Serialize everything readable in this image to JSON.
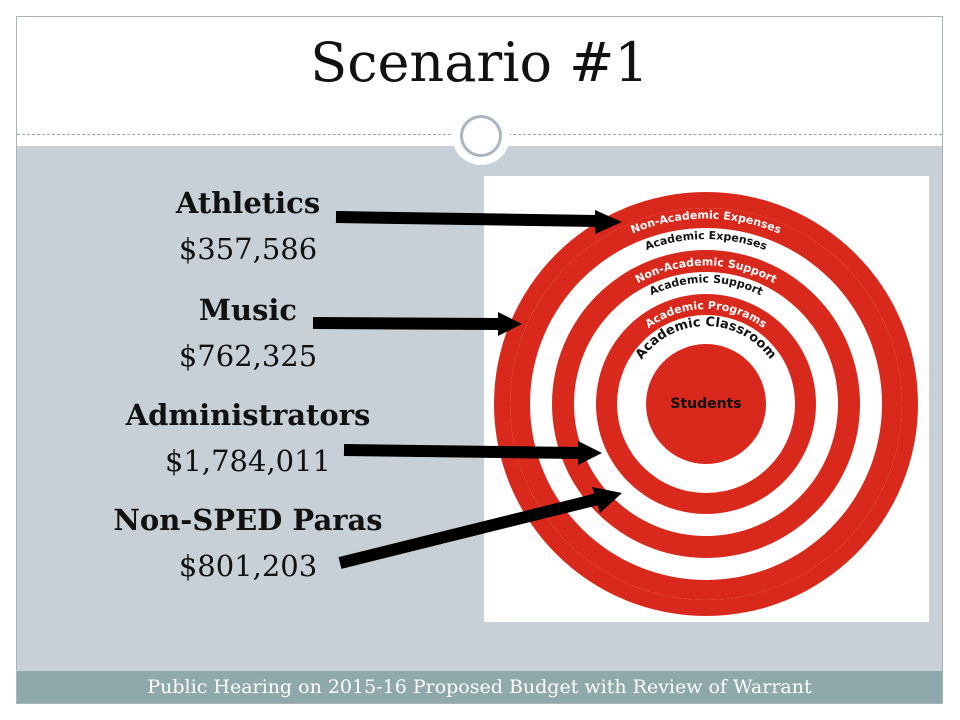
{
  "slide": {
    "title": "Scenario #1",
    "footer": "Public Hearing on 2015-16 Proposed Budget with Review of Warrant"
  },
  "items": [
    {
      "label": "Athletics",
      "value": "$357,586"
    },
    {
      "label": "Music",
      "value": "$762,325"
    },
    {
      "label": "Administrators",
      "value": "$1,784,011"
    },
    {
      "label": "Non-SPED Paras",
      "value": "$801,203"
    }
  ],
  "target": {
    "center": "Students",
    "rings": [
      "Non-Academic Expenses",
      "Academic Expenses",
      "Non-Academic Support",
      "Academic Support",
      "Academic Programs",
      "Academic Classroom"
    ]
  },
  "colors": {
    "ring_red": "#d9291c",
    "content_bg": "#c6d0d6",
    "footer_bg": "#8fa8ac",
    "arrow": "#000000"
  }
}
